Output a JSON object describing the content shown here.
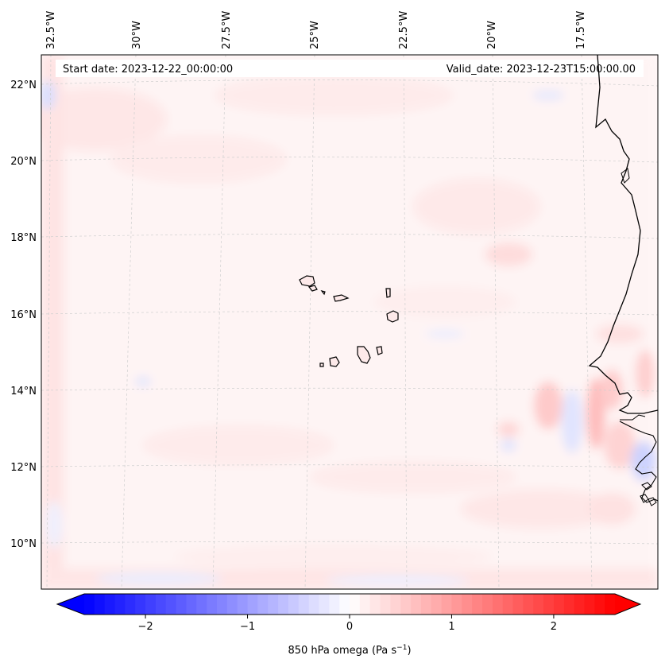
{
  "header": {
    "start_date": "Start date: 2023-12-22_00:00:00",
    "valid_date": "Valid_date: 2023-12-23T15:00:00.00"
  },
  "map": {
    "longitude_labels": [
      "32.5°W",
      "30°W",
      "27.5°W",
      "25°W",
      "22.5°W",
      "20°W",
      "17.5°W"
    ],
    "latitude_labels": [
      "22°N",
      "20°N",
      "18°N",
      "16°N",
      "14°N",
      "12°N",
      "10°N"
    ],
    "gridlines": true,
    "region": "Cape Verde Islands and West African coast (Senegal, Gambia, Guinea-Bissau)"
  },
  "colorbar": {
    "label_main": "850 hPa omega (Pa s",
    "label_sup": "−1",
    "label_end": ")",
    "ticks": [
      "−2",
      "−1",
      "0",
      "1",
      "2"
    ],
    "tick_values": [
      -2,
      -1,
      0,
      1,
      2
    ],
    "range": [
      -2.6,
      2.6
    ],
    "colormap": "bwr",
    "low_color": "#0000ff",
    "mid_color": "#ffffff",
    "high_color": "#ff0000",
    "extend": "both"
  }
}
